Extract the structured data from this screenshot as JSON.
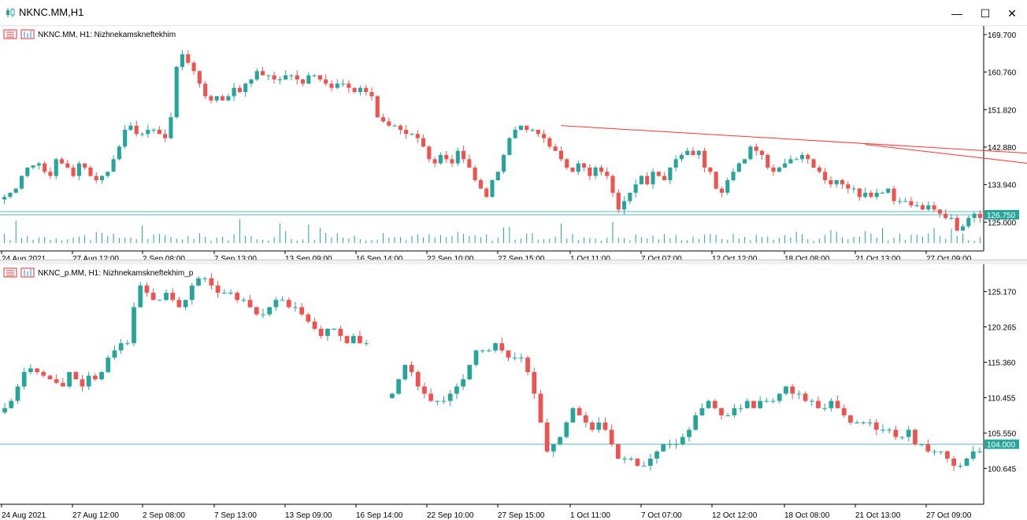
{
  "window": {
    "title": "NKNC.MM,H1",
    "minimize_glyph": "—",
    "maximize_glyph": "☐",
    "close_glyph": "✕",
    "icon": "candlestick-chart-icon"
  },
  "colors": {
    "bull": "#26a69a",
    "bear": "#ef5350",
    "trendline": "#ff3333",
    "hline": "#5fb8c2",
    "price_tag_bg": "#26a69a",
    "volume": "#26a69a"
  },
  "chart_data": [
    {
      "type": "candlestick",
      "label": "NKNC.MM, H1:  Nizhnekamskneftekhim",
      "ylim": [
        120.0,
        171.0
      ],
      "y_ticks": [
        "169.700",
        "160.760",
        "151.820",
        "142.880",
        "133.940",
        "125.000"
      ],
      "current_price": "126.750",
      "hline_values": [
        126.75,
        127.5
      ],
      "x_ticks": [
        "24 Aug 2021",
        "27 Aug 12:00",
        "2 Sep 08:00",
        "7 Sep 13:00",
        "13 Sep 09:00",
        "16 Sep 14:00",
        "22 Sep 10:00",
        "27 Sep 15:00",
        "1 Oct 11:00",
        "7 Oct 07:00",
        "12 Oct 12:00",
        "18 Oct 08:00",
        "21 Oct 13:00",
        "27 Oct 09:00"
      ],
      "has_volume": true,
      "closes": [
        131,
        132,
        133,
        136,
        138,
        138.5,
        139,
        137,
        136,
        140,
        139,
        138,
        136,
        139,
        138,
        136,
        135,
        136,
        137,
        140,
        143,
        147,
        148,
        146,
        146,
        147,
        147,
        146,
        145,
        150,
        162,
        165,
        163,
        161,
        158,
        155,
        154,
        155,
        154,
        155,
        157,
        156,
        158,
        159,
        161,
        160,
        160,
        159,
        159,
        160,
        160,
        159,
        158,
        160,
        160,
        159,
        158,
        157,
        158,
        158,
        157,
        156,
        157,
        156,
        155,
        150,
        149,
        148,
        148,
        147,
        146,
        146,
        145,
        143,
        140,
        139,
        141,
        140,
        139,
        142,
        140,
        138,
        135,
        133,
        131,
        135,
        137,
        141,
        145,
        147,
        148,
        147,
        147,
        146,
        145,
        143,
        142,
        140,
        138,
        137,
        139,
        138,
        136,
        138,
        137,
        136,
        132,
        128,
        130,
        132,
        134,
        136,
        134,
        137,
        136,
        135,
        138,
        140,
        141,
        142,
        141,
        142,
        138,
        137,
        133,
        132,
        135,
        137,
        139,
        140,
        143,
        142,
        141,
        138,
        137,
        138,
        139,
        140,
        140,
        141,
        140,
        138,
        137,
        135,
        134,
        135,
        134,
        133,
        133,
        131,
        132,
        131,
        132,
        132,
        133,
        130,
        130,
        130,
        129,
        129,
        128,
        129,
        128,
        127,
        126,
        126,
        123,
        124,
        126,
        127,
        126
      ],
      "trendlines": [
        {
          "from_index": 97,
          "from_value": 148,
          "to_index": 248,
          "to_value": 135.8
        },
        {
          "from_index": 150,
          "from_value": 143.5,
          "to_index": 248,
          "to_value": 128
        }
      ]
    },
    {
      "type": "candlestick",
      "label": "NKNC_p.MM, H1:  Nizhnekamskneftekhim_p",
      "ylim": [
        96.0,
        128.5
      ],
      "y_ticks": [
        "125.170",
        "120.265",
        "115.360",
        "110.455",
        "105.550",
        "100.645"
      ],
      "current_price": "104.000",
      "hline_values": [
        104.0
      ],
      "x_ticks": [
        "24 Aug 2021",
        "27 Aug 12:00",
        "2 Sep 08:00",
        "7 Sep 13:00",
        "13 Sep 09:00",
        "16 Sep 14:00",
        "22 Sep 10:00",
        "27 Sep 15:00",
        "1 Oct 11:00",
        "7 Oct 07:00",
        "12 Oct 12:00",
        "18 Oct 08:00",
        "21 Oct 13:00",
        "27 Oct 09:00"
      ],
      "has_volume": false,
      "closes": [
        109,
        110,
        112,
        114,
        114.5,
        114,
        113.5,
        113,
        112.5,
        112,
        114,
        113,
        112,
        113.5,
        113,
        114,
        116,
        117,
        118,
        118,
        123,
        126,
        125,
        124,
        124,
        125,
        124,
        123,
        124,
        126,
        127,
        127,
        126,
        125,
        125,
        125,
        124,
        124,
        123,
        122,
        122,
        123,
        124,
        124,
        123,
        123,
        122,
        121,
        120,
        119,
        120,
        120,
        119,
        118,
        119,
        118,
        118,
        null,
        null,
        null,
        111,
        113,
        115,
        114,
        112,
        111,
        110,
        110,
        110,
        111,
        112,
        113,
        115,
        117,
        117,
        117,
        118,
        117,
        116,
        116,
        116,
        114,
        111,
        107,
        103,
        104,
        105,
        107,
        109,
        108,
        107,
        106,
        107,
        106,
        104,
        102,
        102,
        102,
        101,
        101,
        102,
        103,
        104,
        104,
        104,
        105,
        106,
        108,
        109,
        110,
        109,
        108,
        108,
        109,
        109,
        110,
        109,
        110,
        110,
        110,
        111,
        112,
        111,
        111,
        110,
        110,
        109,
        109,
        110,
        109,
        108,
        107,
        107,
        107,
        107,
        106,
        106,
        106,
        105,
        105,
        106,
        104,
        104,
        103,
        103,
        103,
        102,
        101,
        101,
        102,
        103,
        103
      ]
    }
  ]
}
